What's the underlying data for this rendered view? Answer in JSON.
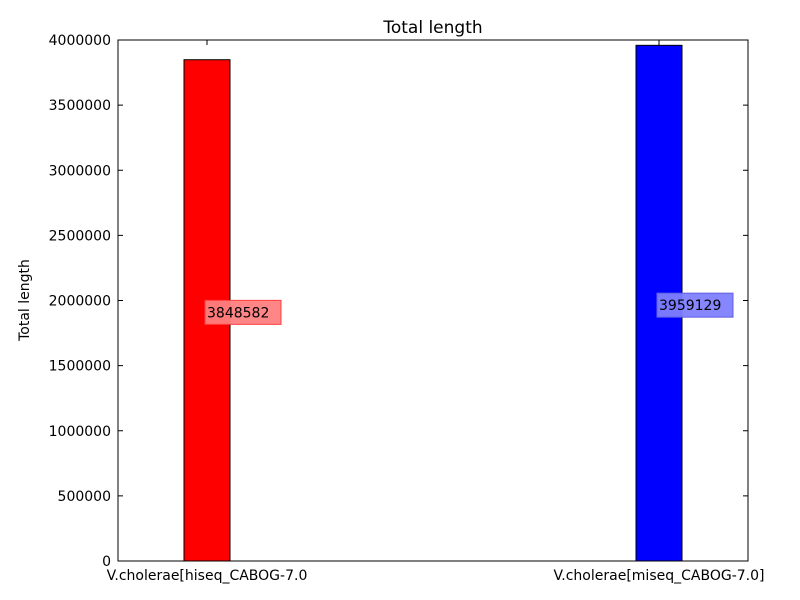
{
  "chart_data": {
    "type": "bar",
    "title": "Total length",
    "xlabel": "",
    "ylabel": "Total length",
    "categories": [
      "V.cholerae[hiseq_CABOG-7.0",
      "V.cholerae[miseq_CABOG-7.0]"
    ],
    "values": [
      3848582,
      3959129
    ],
    "data_labels": [
      "3848582",
      "3959129"
    ],
    "bar_colors": [
      "#ff0000",
      "#0000ff"
    ],
    "ylim": [
      0,
      4000000
    ],
    "yticks": [
      0,
      500000,
      1000000,
      1500000,
      2000000,
      2500000,
      3000000,
      3500000,
      4000000
    ],
    "ytick_labels": [
      "0",
      "500000",
      "1000000",
      "1500000",
      "2000000",
      "2500000",
      "3000000",
      "3500000",
      "4000000"
    ],
    "grid": false,
    "legend": "none"
  }
}
